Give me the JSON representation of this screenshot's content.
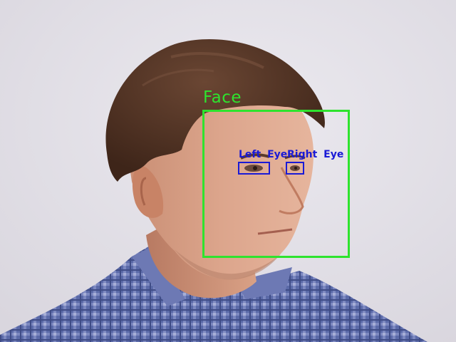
{
  "detections": {
    "face": {
      "label": "Face",
      "color": "#2ee32e"
    },
    "left_eye": {
      "label": "Left Eye",
      "color": "#1a1ad6"
    },
    "right_eye": {
      "label": "Right Eye",
      "color": "#1a1ad6"
    }
  }
}
